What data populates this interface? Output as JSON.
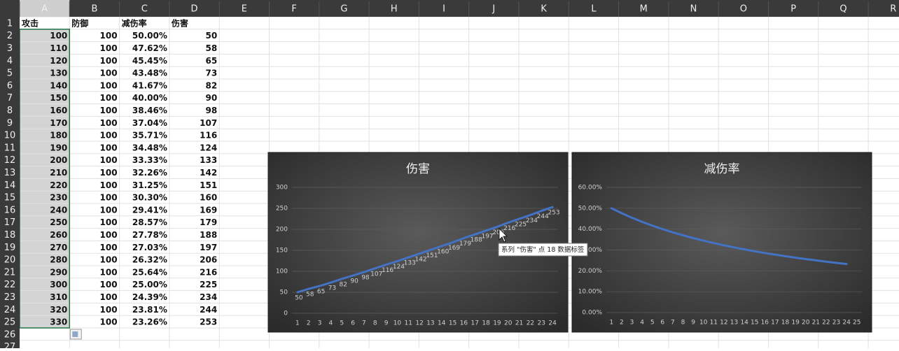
{
  "sheet": {
    "columns": [
      "A",
      "B",
      "C",
      "D",
      "E",
      "F",
      "G",
      "H",
      "I",
      "J",
      "K",
      "L",
      "M",
      "N",
      "O",
      "P",
      "Q",
      "R"
    ],
    "row_numbers": [
      1,
      2,
      3,
      4,
      5,
      6,
      7,
      8,
      9,
      10,
      11,
      12,
      13,
      14,
      15,
      16,
      17,
      18,
      19,
      20,
      21,
      22,
      23,
      24,
      25,
      26,
      27
    ],
    "header": [
      "攻击",
      "防御",
      "减伤率",
      "伤害"
    ],
    "rows": [
      [
        100,
        100,
        "50.00%",
        50
      ],
      [
        110,
        100,
        "47.62%",
        58
      ],
      [
        120,
        100,
        "45.45%",
        65
      ],
      [
        130,
        100,
        "43.48%",
        73
      ],
      [
        140,
        100,
        "41.67%",
        82
      ],
      [
        150,
        100,
        "40.00%",
        90
      ],
      [
        160,
        100,
        "38.46%",
        98
      ],
      [
        170,
        100,
        "37.04%",
        107
      ],
      [
        180,
        100,
        "35.71%",
        116
      ],
      [
        190,
        100,
        "34.48%",
        124
      ],
      [
        200,
        100,
        "33.33%",
        133
      ],
      [
        210,
        100,
        "32.26%",
        142
      ],
      [
        220,
        100,
        "31.25%",
        151
      ],
      [
        230,
        100,
        "30.30%",
        160
      ],
      [
        240,
        100,
        "29.41%",
        169
      ],
      [
        250,
        100,
        "28.57%",
        179
      ],
      [
        260,
        100,
        "27.78%",
        188
      ],
      [
        270,
        100,
        "27.03%",
        197
      ],
      [
        280,
        100,
        "26.32%",
        206
      ],
      [
        290,
        100,
        "25.64%",
        216
      ],
      [
        300,
        100,
        "25.00%",
        225
      ],
      [
        310,
        100,
        "24.39%",
        234
      ],
      [
        320,
        100,
        "23.81%",
        244
      ],
      [
        330,
        100,
        "23.26%",
        253
      ]
    ]
  },
  "chart_data": [
    {
      "type": "line",
      "title": "伤害",
      "color": "#4472c4",
      "categories": [
        1,
        2,
        3,
        4,
        5,
        6,
        7,
        8,
        9,
        10,
        11,
        12,
        13,
        14,
        15,
        16,
        17,
        18,
        19,
        20,
        21,
        22,
        23,
        24
      ],
      "values": [
        50,
        58,
        65,
        73,
        82,
        90,
        98,
        107,
        116,
        124,
        133,
        142,
        151,
        160,
        169,
        179,
        188,
        197,
        206,
        216,
        225,
        234,
        244,
        253
      ],
      "data_labels": true,
      "grid": true,
      "ylim": [
        0,
        300
      ],
      "yticks": [
        0,
        50,
        100,
        150,
        200,
        250,
        300
      ]
    },
    {
      "type": "line",
      "title": "减伤率",
      "color": "#4472c4",
      "categories": [
        1,
        2,
        3,
        4,
        5,
        6,
        7,
        8,
        9,
        10,
        11,
        12,
        13,
        14,
        15,
        16,
        17,
        18,
        19,
        20,
        21,
        22,
        23,
        24,
        25
      ],
      "values": [
        50,
        47.62,
        45.45,
        43.48,
        41.67,
        40,
        38.46,
        37.04,
        35.71,
        34.48,
        33.33,
        32.26,
        31.25,
        30.3,
        29.41,
        28.57,
        27.78,
        27.03,
        26.32,
        25.64,
        25,
        24.39,
        23.81,
        23.26,
        null
      ],
      "data_labels": false,
      "grid": true,
      "ylim": [
        0,
        60
      ],
      "yticks": [
        {
          "value": 0,
          "label": "0.00%"
        },
        {
          "value": 10,
          "label": "10.00%"
        },
        {
          "value": 20,
          "label": "20.00%"
        },
        {
          "value": 30,
          "label": "30.00%"
        },
        {
          "value": 40,
          "label": "40.00%"
        },
        {
          "value": 50,
          "label": "50.00%"
        },
        {
          "value": 60,
          "label": "60.00%"
        }
      ]
    }
  ],
  "tooltip": "系列 \"伤害\" 点 18 数据标签"
}
